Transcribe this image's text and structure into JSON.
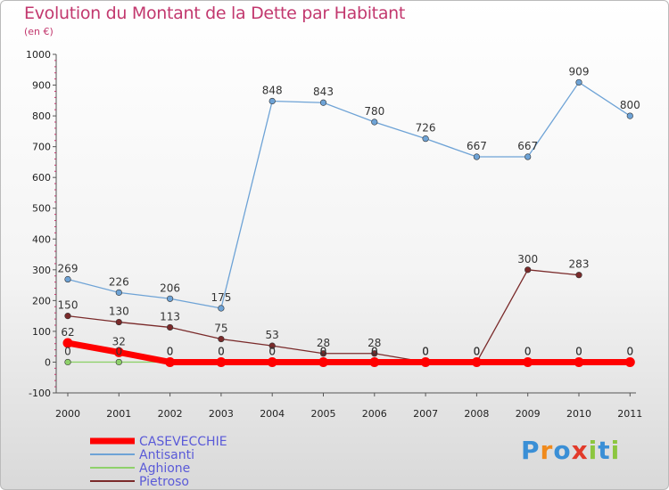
{
  "title": "Evolution du Montant de la Dette par Habitant",
  "subtitle": "(en €)",
  "logo": {
    "text": "Proxiti",
    "colors": [
      "#3a8fd6",
      "#f08a1c",
      "#3a8fd6",
      "#e23a2a",
      "#8cc63f",
      "#3a8fd6",
      "#8cc63f"
    ]
  },
  "chart_data": {
    "type": "line",
    "x": [
      "2000",
      "2001",
      "2002",
      "2003",
      "2004",
      "2005",
      "2006",
      "2007",
      "2008",
      "2009",
      "2010",
      "2011"
    ],
    "ylim": [
      -100,
      1000
    ],
    "yticks": [
      "-100",
      "0",
      "100",
      "200",
      "300",
      "400",
      "500",
      "600",
      "700",
      "800",
      "900",
      "1000"
    ],
    "grid": false,
    "legend": "bottom-left",
    "series": [
      {
        "name": "CASEVECCHIE",
        "color": "#ff0000",
        "values": [
          62,
          32,
          0,
          0,
          0,
          0,
          0,
          0,
          0,
          0,
          0,
          0
        ],
        "labels": [
          "62",
          "32",
          "0",
          "0",
          "0",
          "0",
          "0",
          "0",
          "0",
          "0",
          "0",
          "0"
        ]
      },
      {
        "name": "Antisanti",
        "color": "#6ea3d6",
        "values": [
          269,
          226,
          206,
          175,
          848,
          843,
          780,
          726,
          667,
          667,
          909,
          800
        ],
        "labels": [
          "269",
          "226",
          "206",
          "175",
          "848",
          "843",
          "780",
          "726",
          "667",
          "667",
          "909",
          "800"
        ]
      },
      {
        "name": "Aghione",
        "color": "#8fd16b",
        "values": [
          0,
          0,
          0,
          0,
          0,
          0,
          0,
          0,
          0,
          0,
          0,
          0
        ],
        "labels": [
          "0",
          "0",
          "0",
          "0",
          "0",
          "0",
          "0",
          "0",
          "0",
          "0",
          "0",
          "0"
        ]
      },
      {
        "name": "Pietroso",
        "color": "#7a2a2a",
        "values": [
          150,
          130,
          113,
          75,
          53,
          28,
          28,
          0,
          0,
          300,
          283,
          null
        ],
        "labels": [
          "150",
          "130",
          "113",
          "75",
          "53",
          "28",
          "28",
          "0",
          "0",
          "300",
          "283",
          null
        ]
      }
    ]
  }
}
